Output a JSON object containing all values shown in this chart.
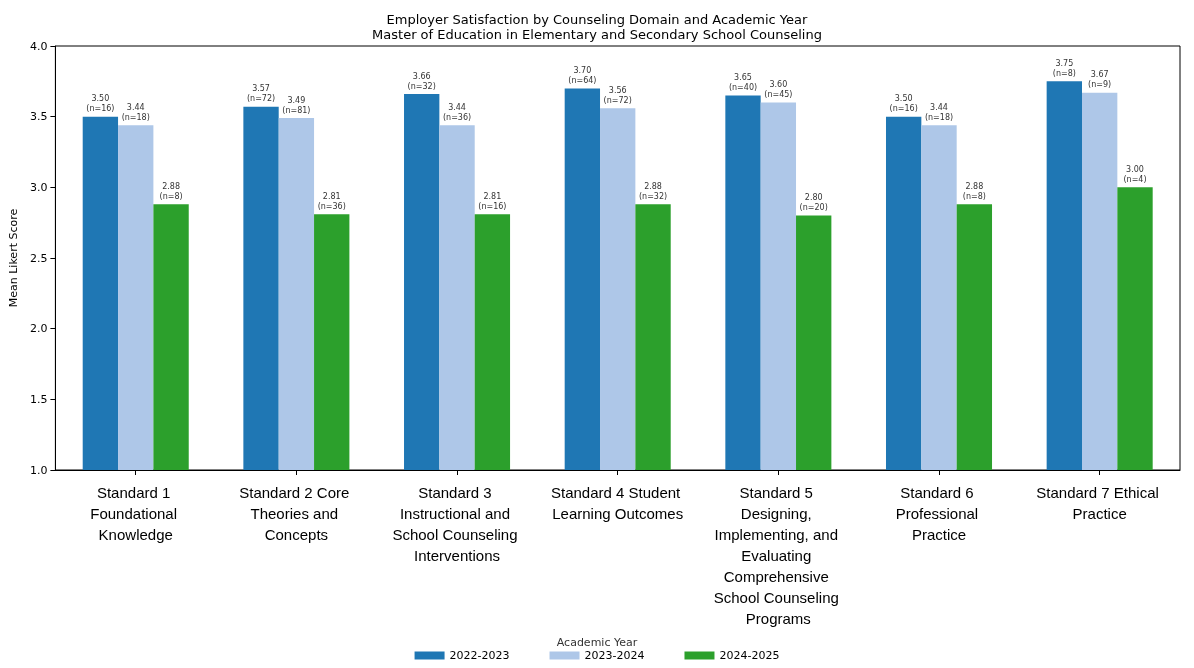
{
  "chart_data": {
    "type": "bar",
    "title": "Employer Satisfaction by Counseling Domain and Academic Year",
    "subtitle": "Master of Education in Elementary and Secondary School Counseling",
    "ylabel": "Mean Likert Score",
    "legend_title": "Academic Year",
    "legend": "bottom",
    "grid": false,
    "categories": [
      "Standard 1 Foundational Knowledge",
      "Standard 2 Core Theories and Concepts",
      "Standard 3 Instructional and School Counseling Interventions",
      "Standard 4 Student Learning Outcomes",
      "Standard 5 Designing, Implementing, and Evaluating Comprehensive School Counseling Programs",
      "Standard 6 Professional Practice",
      "Standard 7 Ethical Practice"
    ],
    "ylim": [
      1.0,
      4.0
    ],
    "yticks": [
      {
        "value": 1.0,
        "label": "1.0"
      },
      {
        "value": 1.5,
        "label": "1.5"
      },
      {
        "value": 2.0,
        "label": "2.0"
      },
      {
        "value": 2.5,
        "label": "2.5"
      },
      {
        "value": 3.0,
        "label": "3.0"
      },
      {
        "value": 3.5,
        "label": "3.5"
      },
      {
        "value": 4.0,
        "label": "4.0"
      }
    ],
    "series": [
      {
        "name": "2022-2023",
        "color": "#1f77b4",
        "values": [
          3.5,
          3.57,
          3.66,
          3.7,
          3.65,
          3.5,
          3.75
        ],
        "value_labels": [
          "3.50\n(n=16)",
          "3.57\n(n=72)",
          "3.66\n(n=32)",
          "3.70\n(n=64)",
          "3.65\n(n=40)",
          "3.50\n(n=16)",
          "3.75\n(n=8)"
        ]
      },
      {
        "name": "2023-2024",
        "color": "#aec7e8",
        "values": [
          3.44,
          3.49,
          3.44,
          3.56,
          3.6,
          3.44,
          3.67
        ],
        "value_labels": [
          "3.44\n(n=18)",
          "3.49\n(n=81)",
          "3.44\n(n=36)",
          "3.56\n(n=72)",
          "3.60\n(n=45)",
          "3.44\n(n=18)",
          "3.67\n(n=9)"
        ]
      },
      {
        "name": "2024-2025",
        "color": "#2ca02c",
        "values": [
          2.88,
          2.81,
          2.81,
          2.88,
          2.8,
          2.88,
          3.0
        ],
        "value_labels": [
          "2.88\n(n=8)",
          "2.81\n(n=36)",
          "2.81\n(n=16)",
          "2.88\n(n=32)",
          "2.80\n(n=20)",
          "2.88\n(n=8)",
          "3.00\n(n=4)"
        ]
      }
    ]
  }
}
